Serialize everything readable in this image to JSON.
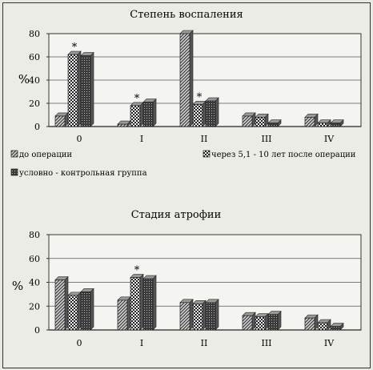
{
  "chart_data": [
    {
      "type": "bar",
      "title": "Степень воспаления",
      "ylabel": "%",
      "ylim": [
        0,
        80
      ],
      "yticks": [
        "0",
        "20",
        "40",
        "60",
        "80"
      ],
      "categories": [
        "0",
        "I",
        "II",
        "III",
        "IV"
      ],
      "grid": true,
      "legend_position": "bottom",
      "series": [
        {
          "name": "до операции",
          "values": [
            9,
            2,
            80,
            9,
            8
          ],
          "pattern": "diag"
        },
        {
          "name": "через 5,1 - 10 лет после операции",
          "values": [
            62,
            18,
            19,
            8,
            3
          ],
          "pattern": "check"
        },
        {
          "name": "условно - контрольная группа",
          "values": [
            61,
            21,
            22,
            3,
            3
          ],
          "pattern": "dots"
        }
      ],
      "annotations": [
        {
          "category": "0",
          "series": 1,
          "text": "*"
        },
        {
          "category": "I",
          "series": 1,
          "text": "*"
        },
        {
          "category": "II",
          "series": 1,
          "text": "*"
        }
      ]
    },
    {
      "type": "bar",
      "title": "Стадия атрофии",
      "ylabel": "%",
      "ylim": [
        0,
        80
      ],
      "yticks": [
        "0",
        "20",
        "40",
        "60",
        "80"
      ],
      "categories": [
        "0",
        "I",
        "II",
        "III",
        "IV"
      ],
      "grid": true,
      "series": [
        {
          "values": [
            42,
            25,
            23,
            12,
            10
          ],
          "pattern": "diag"
        },
        {
          "values": [
            29,
            44,
            22,
            11,
            6
          ],
          "pattern": "check"
        },
        {
          "values": [
            32,
            43,
            23,
            13,
            3
          ],
          "pattern": "dots"
        }
      ],
      "annotations": [
        {
          "category": "I",
          "series": 1,
          "text": "*"
        }
      ]
    }
  ]
}
